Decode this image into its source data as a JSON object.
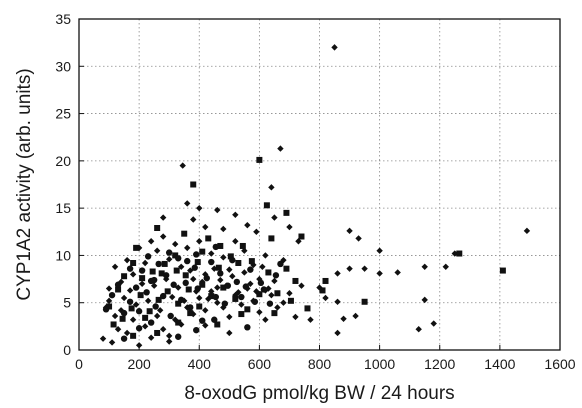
{
  "chart_data": {
    "type": "scatter",
    "title": "",
    "xlabel": "8-oxodG pmol/kg BW / 24 hours",
    "ylabel": "CYP1A2 activity (arb. units)",
    "xlim": [
      0,
      1600
    ],
    "ylim": [
      0,
      35
    ],
    "xticks": [
      0,
      200,
      400,
      600,
      800,
      1000,
      1200,
      1400,
      1600
    ],
    "yticks": [
      0,
      5,
      10,
      15,
      20,
      25,
      30,
      35
    ],
    "grid": true,
    "legend": "none",
    "series": [
      {
        "marker": "diamond",
        "color": "#111111",
        "points": [
          [
            850,
            32
          ],
          [
            345,
            19.5
          ],
          [
            670,
            21.3
          ],
          [
            640,
            17.2
          ],
          [
            280,
            14
          ],
          [
            360,
            15.5
          ],
          [
            400,
            15
          ],
          [
            460,
            14.8
          ],
          [
            520,
            14.3
          ],
          [
            380,
            13.8
          ],
          [
            420,
            13
          ],
          [
            480,
            12.8
          ],
          [
            560,
            13.2
          ],
          [
            590,
            12.5
          ],
          [
            650,
            14
          ],
          [
            700,
            13
          ],
          [
            730,
            11.5
          ],
          [
            900,
            12.6
          ],
          [
            1490,
            12.6
          ],
          [
            930,
            11.8
          ],
          [
            1000,
            10.5
          ],
          [
            1060,
            8.2
          ],
          [
            1150,
            8.8
          ],
          [
            1220,
            8.8
          ],
          [
            1250,
            10.2
          ],
          [
            1130,
            2.2
          ],
          [
            1180,
            2.8
          ],
          [
            1150,
            5.3
          ],
          [
            1000,
            8.1
          ],
          [
            950,
            8.6
          ],
          [
            900,
            8.6
          ],
          [
            860,
            8.1
          ],
          [
            860,
            5.1
          ],
          [
            800,
            6.6
          ],
          [
            820,
            5.5
          ],
          [
            880,
            3.3
          ],
          [
            920,
            3.6
          ],
          [
            860,
            1.8
          ],
          [
            770,
            3.2
          ],
          [
            720,
            3.5
          ],
          [
            680,
            5
          ],
          [
            650,
            7.3
          ],
          [
            620,
            10
          ],
          [
            600,
            7.5
          ],
          [
            580,
            9
          ],
          [
            550,
            10.5
          ],
          [
            520,
            11.5
          ],
          [
            500,
            8.5
          ],
          [
            480,
            9.8
          ],
          [
            460,
            6.6
          ],
          [
            440,
            10.2
          ],
          [
            420,
            8
          ],
          [
            400,
            11.5
          ],
          [
            380,
            7.5
          ],
          [
            360,
            10.8
          ],
          [
            340,
            8.8
          ],
          [
            320,
            11.2
          ],
          [
            300,
            9.6
          ],
          [
            280,
            12
          ],
          [
            260,
            10.5
          ],
          [
            240,
            11.5
          ],
          [
            220,
            9.2
          ],
          [
            200,
            10.8
          ],
          [
            180,
            8
          ],
          [
            160,
            9.5
          ],
          [
            140,
            7.2
          ],
          [
            120,
            8.8
          ],
          [
            100,
            6.5
          ],
          [
            90,
            4.5
          ],
          [
            80,
            1.2
          ],
          [
            110,
            0.8
          ],
          [
            130,
            2.2
          ],
          [
            160,
            1.8
          ],
          [
            180,
            3.2
          ],
          [
            200,
            0.5
          ],
          [
            220,
            2.5
          ],
          [
            240,
            1.3
          ],
          [
            260,
            3.6
          ],
          [
            280,
            2.2
          ],
          [
            300,
            1.5
          ],
          [
            320,
            3.2
          ],
          [
            340,
            2.7
          ],
          [
            360,
            4.5
          ],
          [
            380,
            3.8
          ],
          [
            400,
            5.5
          ],
          [
            420,
            4.2
          ],
          [
            440,
            6.2
          ],
          [
            460,
            5
          ],
          [
            480,
            4.5
          ],
          [
            500,
            3.5
          ],
          [
            520,
            5.8
          ],
          [
            540,
            4.8
          ],
          [
            560,
            6.5
          ],
          [
            580,
            5.2
          ],
          [
            600,
            4
          ],
          [
            620,
            3.2
          ],
          [
            640,
            5.8
          ],
          [
            660,
            4.5
          ],
          [
            700,
            6
          ],
          [
            740,
            6.8
          ],
          [
            150,
            5.5
          ],
          [
            170,
            6.3
          ],
          [
            190,
            4.8
          ],
          [
            210,
            7
          ],
          [
            230,
            5.2
          ],
          [
            250,
            6.8
          ],
          [
            270,
            4.2
          ],
          [
            290,
            7.5
          ],
          [
            310,
            5.6
          ],
          [
            330,
            6.6
          ],
          [
            350,
            5.2
          ],
          [
            370,
            8.4
          ],
          [
            390,
            6.2
          ],
          [
            410,
            7.2
          ],
          [
            430,
            5.4
          ],
          [
            450,
            8.6
          ],
          [
            470,
            7.4
          ],
          [
            490,
            6.8
          ],
          [
            510,
            7.8
          ],
          [
            530,
            6.1
          ],
          [
            550,
            8.2
          ],
          [
            570,
            7
          ],
          [
            590,
            6.2
          ],
          [
            610,
            8.8
          ],
          [
            630,
            6.5
          ],
          [
            140,
            4.2
          ],
          [
            120,
            3.6
          ],
          [
            100,
            5.2
          ],
          [
            500,
            1.8
          ],
          [
            420,
            2.6
          ],
          [
            300,
            0.9
          ],
          [
            620,
            6.3
          ],
          [
            680,
            9.5
          ]
        ]
      },
      {
        "marker": "square",
        "color": "#111111",
        "points": [
          [
            600,
            20.1
          ],
          [
            380,
            17.5
          ],
          [
            625,
            15.3
          ],
          [
            690,
            14.5
          ],
          [
            260,
            12.9
          ],
          [
            640,
            11.8
          ],
          [
            740,
            12
          ],
          [
            190,
            10.8
          ],
          [
            1410,
            8.4
          ],
          [
            1265,
            10.2
          ],
          [
            950,
            5.1
          ],
          [
            820,
            7.3
          ],
          [
            810,
            6.3
          ],
          [
            660,
            6
          ],
          [
            630,
            8.2
          ],
          [
            575,
            9.4
          ],
          [
            545,
            11
          ],
          [
            505,
            9.9
          ],
          [
            465,
            8.7
          ],
          [
            430,
            11.8
          ],
          [
            395,
            9.3
          ],
          [
            355,
            7.9
          ],
          [
            325,
            8.4
          ],
          [
            285,
            9.1
          ],
          [
            245,
            8.3
          ],
          [
            210,
            7.6
          ],
          [
            180,
            9.2
          ],
          [
            150,
            7.8
          ],
          [
            130,
            6.4
          ],
          [
            100,
            4.6
          ],
          [
            115,
            2.7
          ],
          [
            145,
            3.3
          ],
          [
            175,
            4.4
          ],
          [
            205,
            5.8
          ],
          [
            235,
            4.1
          ],
          [
            265,
            5.3
          ],
          [
            295,
            6.2
          ],
          [
            330,
            4.9
          ],
          [
            365,
            6.4
          ],
          [
            400,
            4.6
          ],
          [
            440,
            5.7
          ],
          [
            480,
            6.6
          ],
          [
            520,
            5.4
          ],
          [
            560,
            4.3
          ],
          [
            600,
            5.9
          ],
          [
            650,
            3.9
          ],
          [
            705,
            5.2
          ],
          [
            760,
            4.4
          ],
          [
            220,
            3.4
          ],
          [
            330,
            2.9
          ],
          [
            460,
            2.7
          ],
          [
            540,
            3.8
          ],
          [
            180,
            1.5
          ],
          [
            260,
            1.8
          ],
          [
            370,
            3.9
          ],
          [
            410,
            6.9
          ],
          [
            275,
            8.1
          ],
          [
            320,
            10
          ],
          [
            350,
            12.3
          ],
          [
            410,
            10.4
          ],
          [
            470,
            11
          ],
          [
            530,
            9.2
          ],
          [
            690,
            8.6
          ],
          [
            720,
            7.3
          ]
        ]
      },
      {
        "marker": "circle",
        "color": "#111111",
        "points": [
          [
            90,
            4.3
          ],
          [
            110,
            5.8
          ],
          [
            130,
            6.9
          ],
          [
            150,
            3.9
          ],
          [
            170,
            5.1
          ],
          [
            190,
            6.6
          ],
          [
            200,
            4.1
          ],
          [
            210,
            8.4
          ],
          [
            225,
            6.1
          ],
          [
            240,
            7.3
          ],
          [
            255,
            4.6
          ],
          [
            265,
            9.1
          ],
          [
            280,
            5.7
          ],
          [
            290,
            7.9
          ],
          [
            305,
            3.6
          ],
          [
            315,
            6.9
          ],
          [
            330,
            9.7
          ],
          [
            340,
            5.3
          ],
          [
            355,
            7.1
          ],
          [
            370,
            4.5
          ],
          [
            385,
            8.7
          ],
          [
            395,
            6.5
          ],
          [
            410,
            3.1
          ],
          [
            425,
            7.6
          ],
          [
            440,
            9.3
          ],
          [
            455,
            5.6
          ],
          [
            470,
            8.1
          ],
          [
            485,
            4.9
          ],
          [
            495,
            6.8
          ],
          [
            510,
            9.5
          ],
          [
            525,
            7.2
          ],
          [
            540,
            5.6
          ],
          [
            555,
            6.7
          ],
          [
            570,
            8.5
          ],
          [
            585,
            5.1
          ],
          [
            605,
            7.1
          ],
          [
            615,
            6.4
          ],
          [
            635,
            4.9
          ],
          [
            655,
            7.9
          ],
          [
            670,
            9.1
          ],
          [
            240,
            2.9
          ],
          [
            200,
            2.3
          ],
          [
            150,
            1.2
          ],
          [
            330,
            1.4
          ],
          [
            390,
            2.1
          ],
          [
            450,
            3.2
          ],
          [
            560,
            2.4
          ],
          [
            170,
            8.6
          ],
          [
            230,
            9.9
          ],
          [
            300,
            10.3
          ],
          [
            390,
            10.1
          ],
          [
            455,
            10.9
          ],
          [
            360,
            9.4
          ],
          [
            250,
            7.4
          ]
        ]
      }
    ]
  }
}
